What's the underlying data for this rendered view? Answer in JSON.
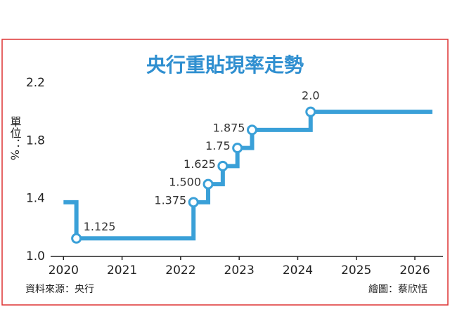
{
  "chart_data": {
    "type": "step-line",
    "title": "央行重貼現率走勢",
    "y_label": "單位：%",
    "source": "資料來源：央行",
    "credit": "繪圖：蔡欣恬",
    "x": [
      2020.0,
      2020.22,
      2022.22,
      2022.47,
      2022.72,
      2022.97,
      2023.22,
      2024.22,
      2026.3
    ],
    "series": [
      {
        "color": "#3aa0d8",
        "values": [
          1.375,
          1.125,
          1.375,
          1.5,
          1.625,
          1.75,
          1.875,
          2.0,
          2.0
        ],
        "value_labels": [
          null,
          "1.125",
          "1.375",
          "1.500",
          "1.625",
          "1.75",
          "1.875",
          "2.0",
          null
        ]
      }
    ],
    "xlim": [
      2019.78,
      2026.48
    ],
    "xticks": [
      2020,
      2021,
      2022,
      2023,
      2024,
      2025,
      2026
    ],
    "ylim": [
      1.0,
      2.2
    ],
    "yticks": [
      {
        "value": 1.0,
        "label": "1.0"
      },
      1.4,
      1.8,
      2.2
    ],
    "grid": false
  }
}
